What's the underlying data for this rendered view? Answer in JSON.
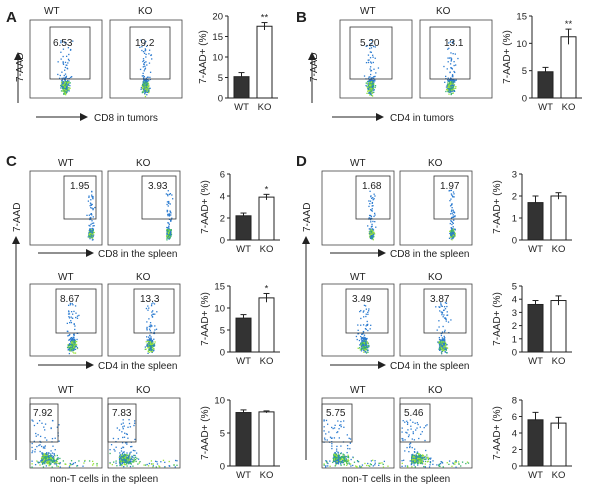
{
  "panels": [
    {
      "letter": "A",
      "y_axis": "7-AAD",
      "x_axis_label": "CD8 in tumors",
      "groups": [
        "WT",
        "KO"
      ],
      "gate_values": [
        "6.53",
        "19.2"
      ]
    },
    {
      "letter": "B",
      "y_axis": "7-AAD",
      "x_axis_label": "CD4 in tumors",
      "groups": [
        "WT",
        "KO"
      ],
      "gate_values": [
        "5.20",
        "13.1"
      ]
    },
    {
      "letter": "C",
      "y_axis": "7-AAD",
      "rows": [
        {
          "groups": [
            "WT",
            "KO"
          ],
          "gate_values": [
            "1.95",
            "3.93"
          ],
          "x_axis_label": "CD8 in the spleen"
        },
        {
          "groups": [
            "WT",
            "KO"
          ],
          "gate_values": [
            "8.67",
            "13.3"
          ],
          "x_axis_label": "CD4 in the spleen"
        },
        {
          "groups": [
            "WT",
            "KO"
          ],
          "gate_values": [
            "7.92",
            "7.83"
          ],
          "x_axis_label": "non-T cells in the spleen"
        }
      ]
    },
    {
      "letter": "D",
      "y_axis": "7-AAD",
      "rows": [
        {
          "groups": [
            "WT",
            "KO"
          ],
          "gate_values": [
            "1.68",
            "1.97"
          ],
          "x_axis_label": "CD8 in the spleen"
        },
        {
          "groups": [
            "WT",
            "KO"
          ],
          "gate_values": [
            "3.49",
            "3.87"
          ],
          "x_axis_label": "CD4 in the spleen"
        },
        {
          "groups": [
            "WT",
            "KO"
          ],
          "gate_values": [
            "5.75",
            "5.46"
          ],
          "x_axis_label": "non-T cells in the spleen"
        }
      ]
    }
  ],
  "colors": {
    "wt_bar": "#333333",
    "ko_bar": "#ffffff",
    "dot_low": "#2b7bd0",
    "dot_high": "#9be33a"
  },
  "chart_data": [
    {
      "id": "A",
      "type": "bar",
      "categories": [
        "WT",
        "KO"
      ],
      "values": [
        5.2,
        17.5
      ],
      "errors": [
        1.0,
        0.9
      ],
      "significance": [
        "",
        "**"
      ],
      "ylabel": "7-AAD+ (%)",
      "ylim": [
        0,
        20
      ],
      "yticks": [
        0,
        5,
        10,
        15,
        20
      ]
    },
    {
      "id": "B",
      "type": "bar",
      "categories": [
        "WT",
        "KO"
      ],
      "values": [
        4.8,
        11.2
      ],
      "errors": [
        0.8,
        1.4
      ],
      "significance": [
        "",
        "**"
      ],
      "ylabel": "7-AAD+ (%)",
      "ylim": [
        0,
        15
      ],
      "yticks": [
        0,
        5,
        10,
        15
      ]
    },
    {
      "id": "C1",
      "type": "bar",
      "categories": [
        "WT",
        "KO"
      ],
      "values": [
        2.2,
        3.9
      ],
      "errors": [
        0.25,
        0.25
      ],
      "significance": [
        "",
        "*"
      ],
      "ylabel": "7-AAD+ (%)",
      "ylim": [
        0,
        6
      ],
      "yticks": [
        0,
        2,
        4,
        6
      ]
    },
    {
      "id": "C2",
      "type": "bar",
      "categories": [
        "WT",
        "KO"
      ],
      "values": [
        7.7,
        12.3
      ],
      "errors": [
        0.8,
        1.0
      ],
      "significance": [
        "",
        "*"
      ],
      "ylabel": "7-AAD+ (%)",
      "ylim": [
        0,
        15
      ],
      "yticks": [
        0,
        5,
        10,
        15
      ]
    },
    {
      "id": "C3",
      "type": "bar",
      "categories": [
        "WT",
        "KO"
      ],
      "values": [
        8.1,
        8.2
      ],
      "errors": [
        0.4,
        0.15
      ],
      "significance": [
        "",
        ""
      ],
      "ylabel": "7-AAD+ (%)",
      "ylim": [
        0,
        10
      ],
      "yticks": [
        0,
        5,
        10
      ]
    },
    {
      "id": "D1",
      "type": "bar",
      "categories": [
        "WT",
        "KO"
      ],
      "values": [
        1.7,
        2.0
      ],
      "errors": [
        0.3,
        0.15
      ],
      "significance": [
        "",
        ""
      ],
      "ylabel": "7-AAD+ (%)",
      "ylim": [
        0,
        3
      ],
      "yticks": [
        0,
        1,
        2,
        3
      ]
    },
    {
      "id": "D2",
      "type": "bar",
      "categories": [
        "WT",
        "KO"
      ],
      "values": [
        3.6,
        3.9
      ],
      "errors": [
        0.3,
        0.35
      ],
      "significance": [
        "",
        ""
      ],
      "ylabel": "7-AAD+ (%)",
      "ylim": [
        0,
        5
      ],
      "yticks": [
        0,
        1,
        2,
        3,
        4,
        5
      ]
    },
    {
      "id": "D3",
      "type": "bar",
      "categories": [
        "WT",
        "KO"
      ],
      "values": [
        5.6,
        5.2
      ],
      "errors": [
        0.9,
        0.7
      ],
      "significance": [
        "",
        ""
      ],
      "ylabel": "7-AAD+ (%)",
      "ylim": [
        0,
        8
      ],
      "yticks": [
        0,
        2,
        4,
        6,
        8
      ]
    }
  ]
}
